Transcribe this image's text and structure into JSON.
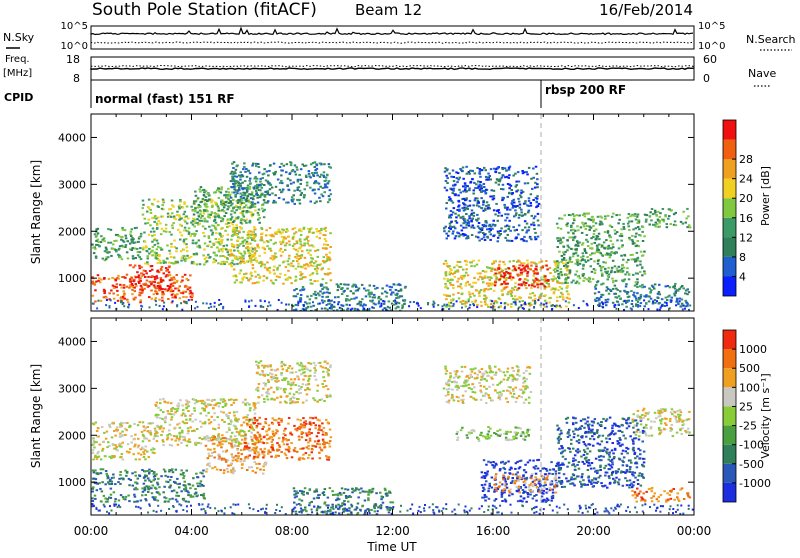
{
  "header": {
    "station": "South Pole Station (fitACF)",
    "beam": "Beam 12",
    "date": "16/Feb/2014"
  },
  "left_labels": {
    "nsky": "N.Sky",
    "freq_1": "Freq.",
    "freq_2": "[MHz]",
    "cpid": "CPID"
  },
  "right_labels": {
    "nsearch": "N.Search",
    "nave": "Nave"
  },
  "noise_panel": {
    "left_ticks": [
      "10^5",
      "10^0"
    ],
    "right_ticks": [
      "10^5",
      "10^0"
    ]
  },
  "freq_panel": {
    "left_ticks": [
      "18",
      "8"
    ],
    "right_ticks": [
      "60",
      "0"
    ]
  },
  "cpid_panel": {
    "segments": [
      {
        "label": "normal (fast) 151 RF",
        "start_hour": 0
      },
      {
        "label": "rbsp 200 RF",
        "start_hour": 18
      }
    ]
  },
  "colors": {
    "power": [
      "#0a20ff",
      "#1f5fd0",
      "#2f7f5a",
      "#3c9a66",
      "#80c840",
      "#f0d020",
      "#f0a020",
      "#f06010",
      "#f01010"
    ],
    "velocity": [
      "#1c2fe0",
      "#2a58b8",
      "#2f7f5a",
      "#4aa040",
      "#88cc38",
      "#c8c8c0",
      "#f0a020",
      "#f07010",
      "#f02a10"
    ]
  },
  "chart_data": [
    {
      "type": "heatmap",
      "name": "power",
      "xlabel": "",
      "ylabel": "Slant Range [km]",
      "xlim_hours": [
        0,
        24
      ],
      "ylim": [
        300,
        4500
      ],
      "yticks": [
        1000,
        2000,
        3000,
        4000
      ],
      "colorbar_label": "Power [dB]",
      "colorbar_ticks": [
        "4",
        "8",
        "12",
        "16",
        "20",
        "24",
        "28"
      ],
      "features": [
        {
          "x_hours": [
            0.0,
            4.0
          ],
          "y": [
            500,
            1100
          ],
          "level": 7
        },
        {
          "x_hours": [
            1.5,
            3.2
          ],
          "y": [
            700,
            1300
          ],
          "level": 8
        },
        {
          "x_hours": [
            0.0,
            2.0
          ],
          "y": [
            1400,
            2100
          ],
          "level": 3
        },
        {
          "x_hours": [
            2.0,
            6.5
          ],
          "y": [
            1300,
            2700
          ],
          "level": 4
        },
        {
          "x_hours": [
            4.0,
            7.0
          ],
          "y": [
            2200,
            3000
          ],
          "level": 3
        },
        {
          "x_hours": [
            5.5,
            9.5
          ],
          "y": [
            900,
            2100
          ],
          "level": 5
        },
        {
          "x_hours": [
            5.5,
            9.5
          ],
          "y": [
            2600,
            3500
          ],
          "level": 2
        },
        {
          "x_hours": [
            8.0,
            12.5
          ],
          "y": [
            300,
            900
          ],
          "level": 2
        },
        {
          "x_hours": [
            14.0,
            17.8
          ],
          "y": [
            1800,
            3400
          ],
          "level": 1
        },
        {
          "x_hours": [
            14.0,
            19.0
          ],
          "y": [
            400,
            1400
          ],
          "level": 5
        },
        {
          "x_hours": [
            16.0,
            18.2
          ],
          "y": [
            800,
            1300
          ],
          "level": 8
        },
        {
          "x_hours": [
            18.5,
            22.0
          ],
          "y": [
            900,
            2400
          ],
          "level": 3
        },
        {
          "x_hours": [
            22.0,
            23.8
          ],
          "y": [
            2100,
            2500
          ],
          "level": 3
        },
        {
          "x_hours": [
            20.0,
            23.8
          ],
          "y": [
            400,
            900
          ],
          "level": 2
        }
      ]
    },
    {
      "type": "heatmap",
      "name": "velocity",
      "xlabel": "Time UT",
      "ylabel": "Slant Range [km]",
      "xlim_hours": [
        0,
        24
      ],
      "ylim": [
        300,
        4500
      ],
      "yticks": [
        1000,
        2000,
        3000,
        4000
      ],
      "xticks": [
        "00:00",
        "04:00",
        "08:00",
        "12:00",
        "16:00",
        "20:00",
        "00:00"
      ],
      "colorbar_label": "Velocity [m s⁻¹]",
      "colorbar_ticks": [
        "-1000",
        "-500",
        "-100",
        "-25",
        "25",
        "100",
        "500",
        "1000"
      ],
      "features": [
        {
          "x_hours": [
            0.0,
            4.5
          ],
          "y": [
            600,
            1300
          ],
          "level": 2
        },
        {
          "x_hours": [
            0.0,
            2.5
          ],
          "y": [
            1500,
            2300
          ],
          "level": 5
        },
        {
          "x_hours": [
            2.5,
            6.5
          ],
          "y": [
            1800,
            2800
          ],
          "level": 5
        },
        {
          "x_hours": [
            4.5,
            7.0
          ],
          "y": [
            1200,
            2000
          ],
          "level": 6
        },
        {
          "x_hours": [
            6.0,
            9.5
          ],
          "y": [
            1500,
            2400
          ],
          "level": 7
        },
        {
          "x_hours": [
            6.5,
            9.5
          ],
          "y": [
            2700,
            3600
          ],
          "level": 5
        },
        {
          "x_hours": [
            8.0,
            12.0
          ],
          "y": [
            300,
            900
          ],
          "level": 2
        },
        {
          "x_hours": [
            14.0,
            17.5
          ],
          "y": [
            2700,
            3500
          ],
          "level": 5
        },
        {
          "x_hours": [
            14.5,
            17.5
          ],
          "y": [
            1900,
            2200
          ],
          "level": 4
        },
        {
          "x_hours": [
            15.5,
            18.5
          ],
          "y": [
            600,
            1500
          ],
          "level": 0
        },
        {
          "x_hours": [
            16.0,
            18.5
          ],
          "y": [
            800,
            1200
          ],
          "level": 6
        },
        {
          "x_hours": [
            18.5,
            22.0
          ],
          "y": [
            900,
            2400
          ],
          "level": 1
        },
        {
          "x_hours": [
            21.5,
            23.8
          ],
          "y": [
            2000,
            2600
          ],
          "level": 5
        },
        {
          "x_hours": [
            21.5,
            23.8
          ],
          "y": [
            600,
            900
          ],
          "level": 7
        }
      ]
    }
  ]
}
